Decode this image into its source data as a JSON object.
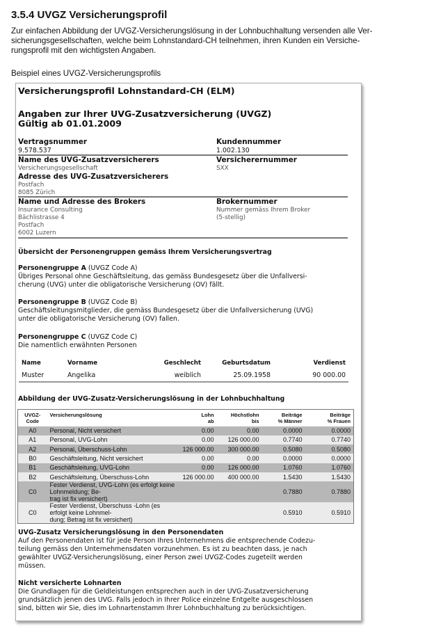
{
  "heading": "3.5.4  UVGZ Versicherungsprofil",
  "intro": [
    "Zur einfachen Abbildung der UVGZ-Versicherungslösung in der Lohnbuchhaltung versenden alle Ver-",
    "sicherungsgesellschaften, welche beim Lohnstandard-CH teilnehmen, ihren Kunden ein Versiche-",
    "rungsprofil mit den wichtigsten Angaben."
  ],
  "example_label": "Beispiel eines UVGZ-Versicherungsprofils",
  "profile": {
    "title": "Versicherungsprofil Lohnstandard-CH (ELM)",
    "subtitle": "Angaben zur Ihrer UVG-Zusatzversicherung (UVGZ)",
    "valid": "Gültig ab 01.01.2009",
    "contract_label": "Vertragsnummer",
    "contract": "9.578.537",
    "customer_label": "Kundennummer",
    "customer": "1.002.130",
    "insurer_label": "Name des UVG-Zusatzversicherers",
    "insurer": "Versicherungsgesellschaft",
    "insurer_no_label": "Versicherernummer",
    "insurer_no": "SXX",
    "insurer_addr_label": "Adresse des UVG-Zusatzversicherers",
    "insurer_addr": [
      "Postfach",
      "8085 Zürich"
    ],
    "broker_label": "Name und Adresse des Brokers",
    "broker": [
      "Insurance Consulting",
      "Bächlistrasse 4",
      "Postfach",
      "6002 Luzern"
    ],
    "broker_no_label": "Brokernummer",
    "broker_no": [
      "Nummer gemäss Ihrem Broker",
      "(5-stellig)"
    ],
    "groups_title": "Übersicht der Personengruppen gemäss Ihrem Versicherungsvertrag",
    "groups": [
      {
        "name": "Personengruppe A",
        "code": "(UVGZ Code A)",
        "text": [
          "Übriges Personal ohne Geschäftsleitung, das gemäss Bundesgesetz über die Unfallversi-",
          "cherung (UVG) unter die obligatorische Versicherung (OV) fällt."
        ]
      },
      {
        "name": "Personengruppe B",
        "code": "(UVGZ Code B)",
        "text": [
          "Geschäftsleitungsmitglieder, die gemäss Bundesgesetz über die Unfallversicherung (UVG)",
          "unter die obligatorische Versicherung (OV) fallen."
        ]
      },
      {
        "name": "Personengruppe C",
        "code": "(UVGZ Code C)",
        "text": [
          "Die namentlich erwähnten Personen"
        ]
      }
    ],
    "persons": {
      "headers": [
        "Name",
        "Vorname",
        "Geschlecht",
        "Geburtsdatum",
        "Verdienst"
      ],
      "rows": [
        [
          "Muster",
          "Angelika",
          "weiblich",
          "25.09.1958",
          "90 000.00"
        ]
      ]
    },
    "solutions_title": "Abbildung der UVG-Zusatz-Versicherungslösung in der Lohnbuchhaltung",
    "solutions": {
      "headers": [
        [
          "UVGZ-",
          "Code"
        ],
        [
          "Versicherungslösung",
          ""
        ],
        [
          "Lohn",
          "ab"
        ],
        [
          "Höchstlohn",
          "bis"
        ],
        [
          "Beiträge",
          "% Männer"
        ],
        [
          "Beiträge",
          "% Frauen"
        ]
      ],
      "rows": [
        {
          "code": "A0",
          "label": [
            "Personal, Nicht versichert"
          ],
          "from": "0.00",
          "to": "0.00",
          "men": "0.0000",
          "women": "0.0000"
        },
        {
          "code": "A1",
          "label": [
            "Personal, UVG-Lohn"
          ],
          "from": "0.00",
          "to": "126 000.00",
          "men": "0.7740",
          "women": "0.7740"
        },
        {
          "code": "A2",
          "label": [
            "Personal, Überschuss-Lohn"
          ],
          "from": "126 000.00",
          "to": "300 000.00",
          "men": "0.5080",
          "women": "0.5080"
        },
        {
          "code": "B0",
          "label": [
            "Geschäftsleitung, Nicht versichert"
          ],
          "from": "0.00",
          "to": "0.00",
          "men": "0.0000",
          "women": "0.0000"
        },
        {
          "code": "B1",
          "label": [
            "Geschäftsleitung, UVG-Lohn"
          ],
          "from": "0.00",
          "to": "126 000.00",
          "men": "1.0760",
          "women": "1.0760"
        },
        {
          "code": "B2",
          "label": [
            "Geschäftsleitung, Überschuss-Lohn"
          ],
          "from": "126 000.00",
          "to": "400 000.00",
          "men": "1.5430",
          "women": "1.5430"
        },
        {
          "code": "C0",
          "label": [
            "Fester Verdienst, UVG-Lohn (es erfolgt keine Lohnmeldung; Be-",
            "trag ist fix versichert)"
          ],
          "from": "",
          "to": "",
          "men": "0.7880",
          "women": "0.7880"
        },
        {
          "code": "C0",
          "label": [
            "Fester Verdienst, Überschuss -Lohn (es erfolgt keine Lohnmel-",
            "dung; Betrag ist fix versichert)"
          ],
          "from": "",
          "to": "",
          "men": "0.5910",
          "women": "0.5910"
        }
      ]
    },
    "personal_title": "UVG-Zusatz Versicherungslösung in den Personendaten",
    "personal_text": [
      "Auf den Personendaten ist für jede Person Ihres Unternehmens die entsprechende Codezu-",
      "teilung gemäss den Unternehmensdaten vorzunehmen. Es ist zu beachten dass, je nach",
      "gewählter UVGZ-Versicherungslösung, einer Person zwei UVGZ-Codes zugeteilt werden",
      "müssen."
    ],
    "uninsured_title": "Nicht versicherte Lohnarten",
    "uninsured_text": [
      "Die Grundlagen für die Geldleistungen entsprechen auch in der UVG-Zusatzversicherung",
      "grundsätzlich jenen des UVG. Falls jedoch in Ihrer Police einzelne Entgelte ausgeschlossen",
      "sind, bitten wir Sie, dies im Lohnartenstamm Ihrer Lohnbuchhaltung zu berücksichtigen."
    ]
  }
}
